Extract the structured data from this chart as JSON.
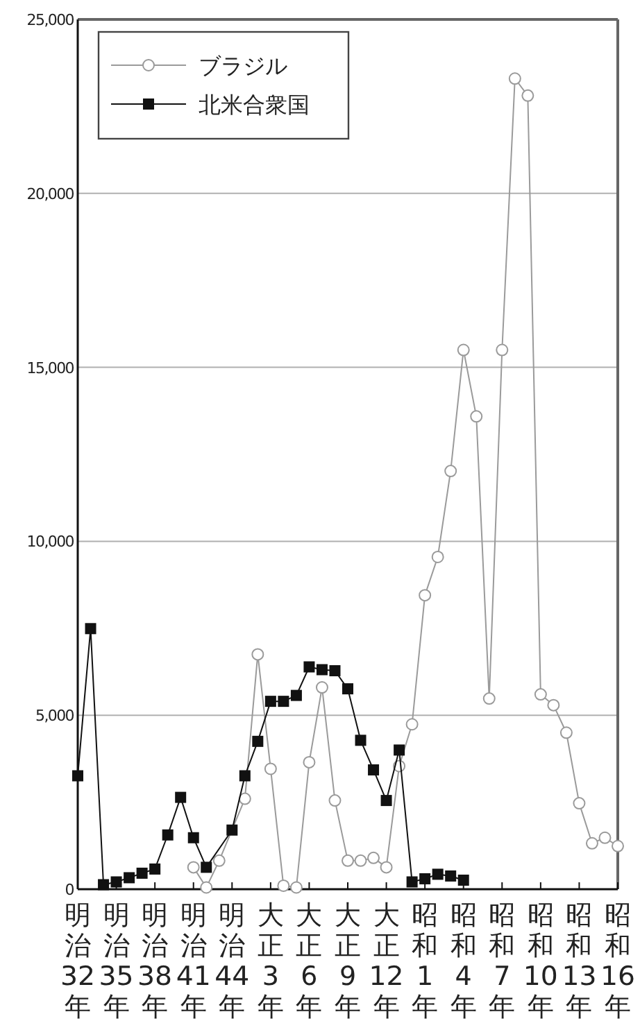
{
  "chart_data": {
    "type": "line",
    "categories": [
      "明治32年",
      null,
      null,
      "明治35年",
      null,
      null,
      "明治38年",
      null,
      null,
      "明治41年",
      null,
      null,
      "明治44年",
      null,
      null,
      "大正3年",
      null,
      null,
      "大正6年",
      null,
      null,
      "大正9年",
      null,
      null,
      "大正12年",
      null,
      null,
      "昭和1年",
      null,
      null,
      "昭和4年",
      null,
      null,
      "昭和7年",
      null,
      null,
      "昭和10年",
      null,
      null,
      "昭和13年",
      null,
      null,
      "昭和16年"
    ],
    "series": [
      {
        "name": "ブラジル",
        "color": "#9a9a9a",
        "marker": "circle",
        "values": [
          null,
          null,
          null,
          null,
          null,
          null,
          null,
          null,
          null,
          630,
          50,
          820,
          null,
          2600,
          6750,
          3460,
          100,
          50,
          3650,
          5800,
          2550,
          820,
          820,
          900,
          630,
          3540,
          4740,
          8450,
          9550,
          12020,
          15500,
          13590,
          5480,
          15500,
          23300,
          22810,
          5600,
          5290,
          4500,
          2470,
          1320,
          1480,
          1240
        ]
      },
      {
        "name": "北米合衆国",
        "color": "#111111",
        "marker": "square",
        "values": [
          3260,
          7490,
          130,
          210,
          330,
          460,
          580,
          1560,
          2640,
          1480,
          630,
          null,
          1700,
          3260,
          4250,
          5400,
          5400,
          5570,
          6390,
          6310,
          6280,
          5760,
          4280,
          3430,
          2550,
          4000,
          210,
          300,
          430,
          380,
          260,
          null,
          null,
          null,
          null,
          null,
          null,
          null,
          null,
          null,
          null,
          null,
          null
        ]
      }
    ],
    "ylim": [
      0,
      25000
    ],
    "yticks": [
      {
        "value": 0,
        "label": "0"
      },
      {
        "value": 5000,
        "label": "5,000"
      },
      {
        "value": 10000,
        "label": "10,000"
      },
      {
        "value": 15000,
        "label": "15,000"
      },
      {
        "value": 20000,
        "label": "20,000"
      },
      {
        "value": 25000,
        "label": "25,000"
      }
    ],
    "grid": "y",
    "legend": "top left",
    "line_style": "solid"
  }
}
